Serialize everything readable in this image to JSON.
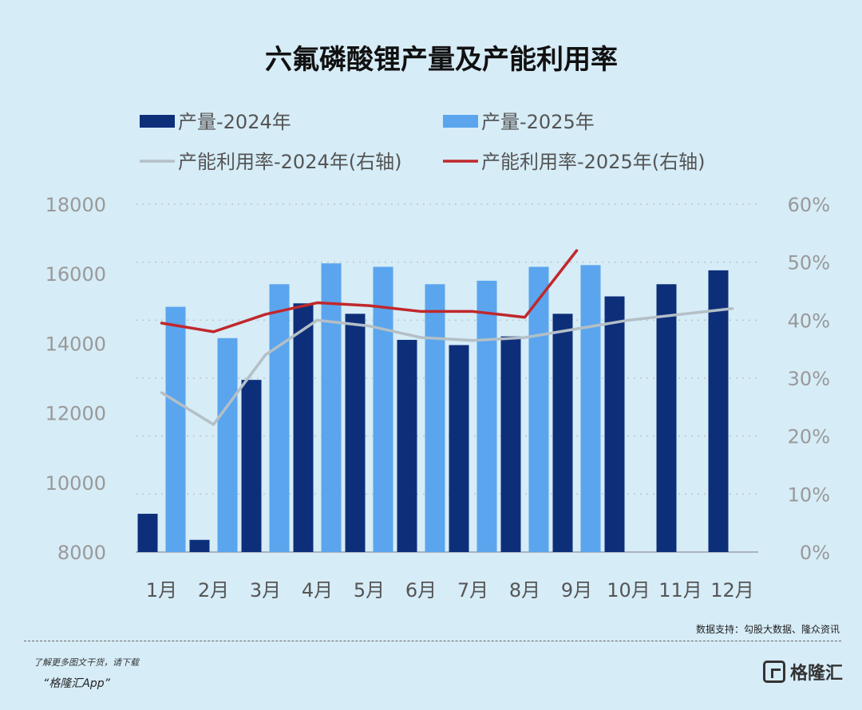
{
  "chart_data": {
    "type": "bar",
    "title": "六氟磷酸锂产量及产能利用率",
    "categories": [
      "1月",
      "2月",
      "3月",
      "4月",
      "5月",
      "6月",
      "7月",
      "8月",
      "9月",
      "10月",
      "11月",
      "12月"
    ],
    "series": [
      {
        "name": "产量-2024年",
        "kind": "bar",
        "axis": "left",
        "color": "#0d2f7a",
        "values": [
          9100,
          8350,
          12950,
          15150,
          14850,
          14100,
          13950,
          14200,
          14850,
          15350,
          15700,
          16100
        ]
      },
      {
        "name": "产量-2025年",
        "kind": "bar",
        "axis": "left",
        "color": "#5aa5ee",
        "values": [
          15050,
          14150,
          15700,
          16300,
          16200,
          15700,
          15800,
          16200,
          16250,
          null,
          null,
          null
        ]
      },
      {
        "name": "产能利用率-2024年(右轴)",
        "kind": "line",
        "axis": "right",
        "color": "#b4bfc6",
        "values": [
          27.5,
          22.0,
          34.0,
          40.0,
          39.0,
          37.0,
          36.5,
          37.0,
          38.5,
          40.0,
          41.0,
          42.0
        ]
      },
      {
        "name": "产能利用率-2025年(右轴)",
        "kind": "line",
        "axis": "right",
        "color": "#c0282c",
        "values": [
          39.5,
          38.0,
          41.0,
          43.0,
          42.5,
          41.5,
          41.5,
          40.5,
          52.0,
          null,
          null,
          null
        ]
      }
    ],
    "y_left": {
      "min": 8000,
      "max": 18000,
      "ticks": [
        "8000",
        "10000",
        "12000",
        "14000",
        "16000",
        "18000"
      ]
    },
    "y_right": {
      "min": 0,
      "max": 60,
      "ticks": [
        "0%",
        "10%",
        "20%",
        "30%",
        "40%",
        "50%",
        "60%"
      ]
    },
    "grid": true,
    "legend_position": "top"
  },
  "footer": {
    "source": "数据支持：勾股大数据、隆众资讯",
    "promo_line1": "了解更多图文干货，请下载",
    "promo_line2": "“格隆汇App”",
    "brand": "格隆汇"
  }
}
